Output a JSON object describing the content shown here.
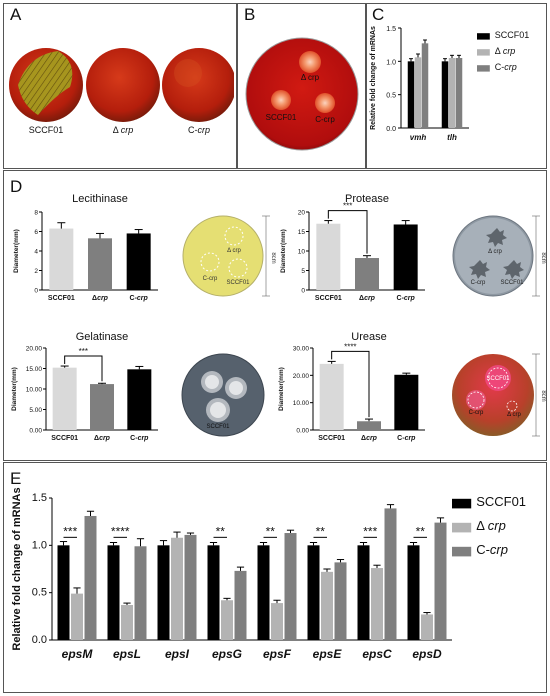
{
  "panels": {
    "A": {
      "label": "A",
      "plates": [
        {
          "name": "SCCF01",
          "prefix": "",
          "italic": ""
        },
        {
          "name": "Δ crp",
          "prefix": "Δ ",
          "italic": "crp"
        },
        {
          "name": "C-crp",
          "prefix": "C-",
          "italic": "crp"
        }
      ]
    },
    "B": {
      "label": "B",
      "spot_labels": {
        "dcrp": "Δ crp",
        "sccf": "SCCF01",
        "ccrp": "C-crp"
      }
    },
    "C": {
      "label": "C"
    },
    "D": {
      "label": "D",
      "ruler_text": "8cm"
    },
    "E": {
      "label": "E"
    }
  },
  "colors": {
    "black": "#000000",
    "light_gray": "#b3b3b3",
    "dark_gray": "#7f7f7f",
    "gray_d": "#d9d9d9",
    "agar_red": "#c81414",
    "plate_yellow": "#e3e07a",
    "plate_slate": "#6f7a86"
  },
  "chart_data": [
    {
      "id": "C",
      "type": "bar",
      "ylabel": "Relative fold change of mRNAs",
      "ylim": [
        0,
        1.5
      ],
      "yticks": [
        "0.0",
        "0.5",
        "1.0",
        "1.5"
      ],
      "categories": [
        "vmh",
        "tlh"
      ],
      "series": [
        {
          "name": "SCCF01",
          "values": [
            1.0,
            1.0
          ],
          "errors": [
            0.04,
            0.04
          ]
        },
        {
          "name": "Δ crp",
          "values": [
            1.06,
            1.05
          ],
          "errors": [
            0.05,
            0.04
          ]
        },
        {
          "name": "C-crp",
          "values": [
            1.27,
            1.05
          ],
          "errors": [
            0.05,
            0.04
          ]
        }
      ],
      "legend": "right",
      "legend_labels": [
        {
          "prefix": "SCCF01",
          "italic": ""
        },
        {
          "prefix": "Δ ",
          "italic": "crp"
        },
        {
          "prefix": "C-",
          "italic": "crp"
        }
      ]
    },
    {
      "id": "D-lecithinase",
      "type": "bar",
      "title": "Lecithinase",
      "ylabel": "Diameter(mm)",
      "ylim": [
        0,
        8
      ],
      "yticks": [
        "0",
        "2",
        "4",
        "6",
        "8"
      ],
      "categories": [
        "SCCF01",
        "Δcrp",
        "C-crp"
      ],
      "values": [
        6.3,
        5.3,
        5.8
      ],
      "errors": [
        0.6,
        0.5,
        0.4
      ]
    },
    {
      "id": "D-protease",
      "type": "bar",
      "title": "Protease",
      "ylabel": "Diameter(mm)",
      "ylim": [
        0,
        20
      ],
      "yticks": [
        "0",
        "5",
        "10",
        "15",
        "20"
      ],
      "categories": [
        "SCCF01",
        "Δcrp",
        "C-crp"
      ],
      "values": [
        17.0,
        8.2,
        16.8
      ],
      "errors": [
        0.8,
        0.6,
        1.0
      ],
      "significance": {
        "label": "***",
        "between": [
          0,
          1
        ]
      }
    },
    {
      "id": "D-gelatinase",
      "type": "bar",
      "title": "Gelatinase",
      "ylabel": "Diameter(mm)",
      "ylim": [
        0,
        20
      ],
      "yticks": [
        "0.00",
        "5.00",
        "10.00",
        "15.00",
        "20.00"
      ],
      "categories": [
        "SCCF01",
        "Δcrp",
        "C-crp"
      ],
      "values": [
        15.2,
        11.2,
        14.8
      ],
      "errors": [
        0.4,
        0.2,
        0.7
      ],
      "significance": {
        "label": "***",
        "between": [
          0,
          1
        ]
      }
    },
    {
      "id": "D-urease",
      "type": "bar",
      "title": "Urease",
      "ylabel": "Diameter(mm)",
      "ylim": [
        0,
        30
      ],
      "yticks": [
        "0.00",
        "10.00",
        "20.00",
        "30.00"
      ],
      "categories": [
        "SCCF01",
        "Δcrp",
        "C-crp"
      ],
      "values": [
        24.2,
        3.2,
        20.2
      ],
      "errors": [
        0.9,
        0.8,
        0.6
      ],
      "significance": {
        "label": "****",
        "between": [
          0,
          1
        ]
      }
    },
    {
      "id": "E",
      "type": "bar",
      "ylabel": "Relative fold change of mRNAs",
      "ylim": [
        0,
        1.5
      ],
      "yticks": [
        "0.0",
        "0.5",
        "1.0",
        "1.5"
      ],
      "categories": [
        "epsM",
        "epsL",
        "epsI",
        "epsG",
        "epsF",
        "epsE",
        "epsC",
        "epsD"
      ],
      "series": [
        {
          "name": "SCCF01",
          "values": [
            1.0,
            1.0,
            1.0,
            1.0,
            1.0,
            1.0,
            1.0,
            1.0
          ],
          "errors": [
            0.04,
            0.03,
            0.05,
            0.03,
            0.03,
            0.03,
            0.03,
            0.03
          ]
        },
        {
          "name": "Δ crp",
          "values": [
            0.49,
            0.37,
            1.08,
            0.42,
            0.39,
            0.72,
            0.76,
            0.27
          ],
          "errors": [
            0.06,
            0.02,
            0.06,
            0.02,
            0.03,
            0.03,
            0.03,
            0.02
          ]
        },
        {
          "name": "C-crp",
          "values": [
            1.31,
            0.99,
            1.11,
            0.73,
            1.13,
            0.82,
            1.39,
            1.24
          ],
          "errors": [
            0.05,
            0.08,
            0.02,
            0.04,
            0.03,
            0.03,
            0.04,
            0.05
          ]
        }
      ],
      "significance": [
        "***",
        "****",
        "",
        "**",
        "**",
        "**",
        "***",
        "**"
      ],
      "legend": "right",
      "legend_labels": [
        {
          "prefix": "SCCF01",
          "italic": ""
        },
        {
          "prefix": "Δ ",
          "italic": "crp"
        },
        {
          "prefix": "C-",
          "italic": "crp"
        }
      ]
    }
  ]
}
